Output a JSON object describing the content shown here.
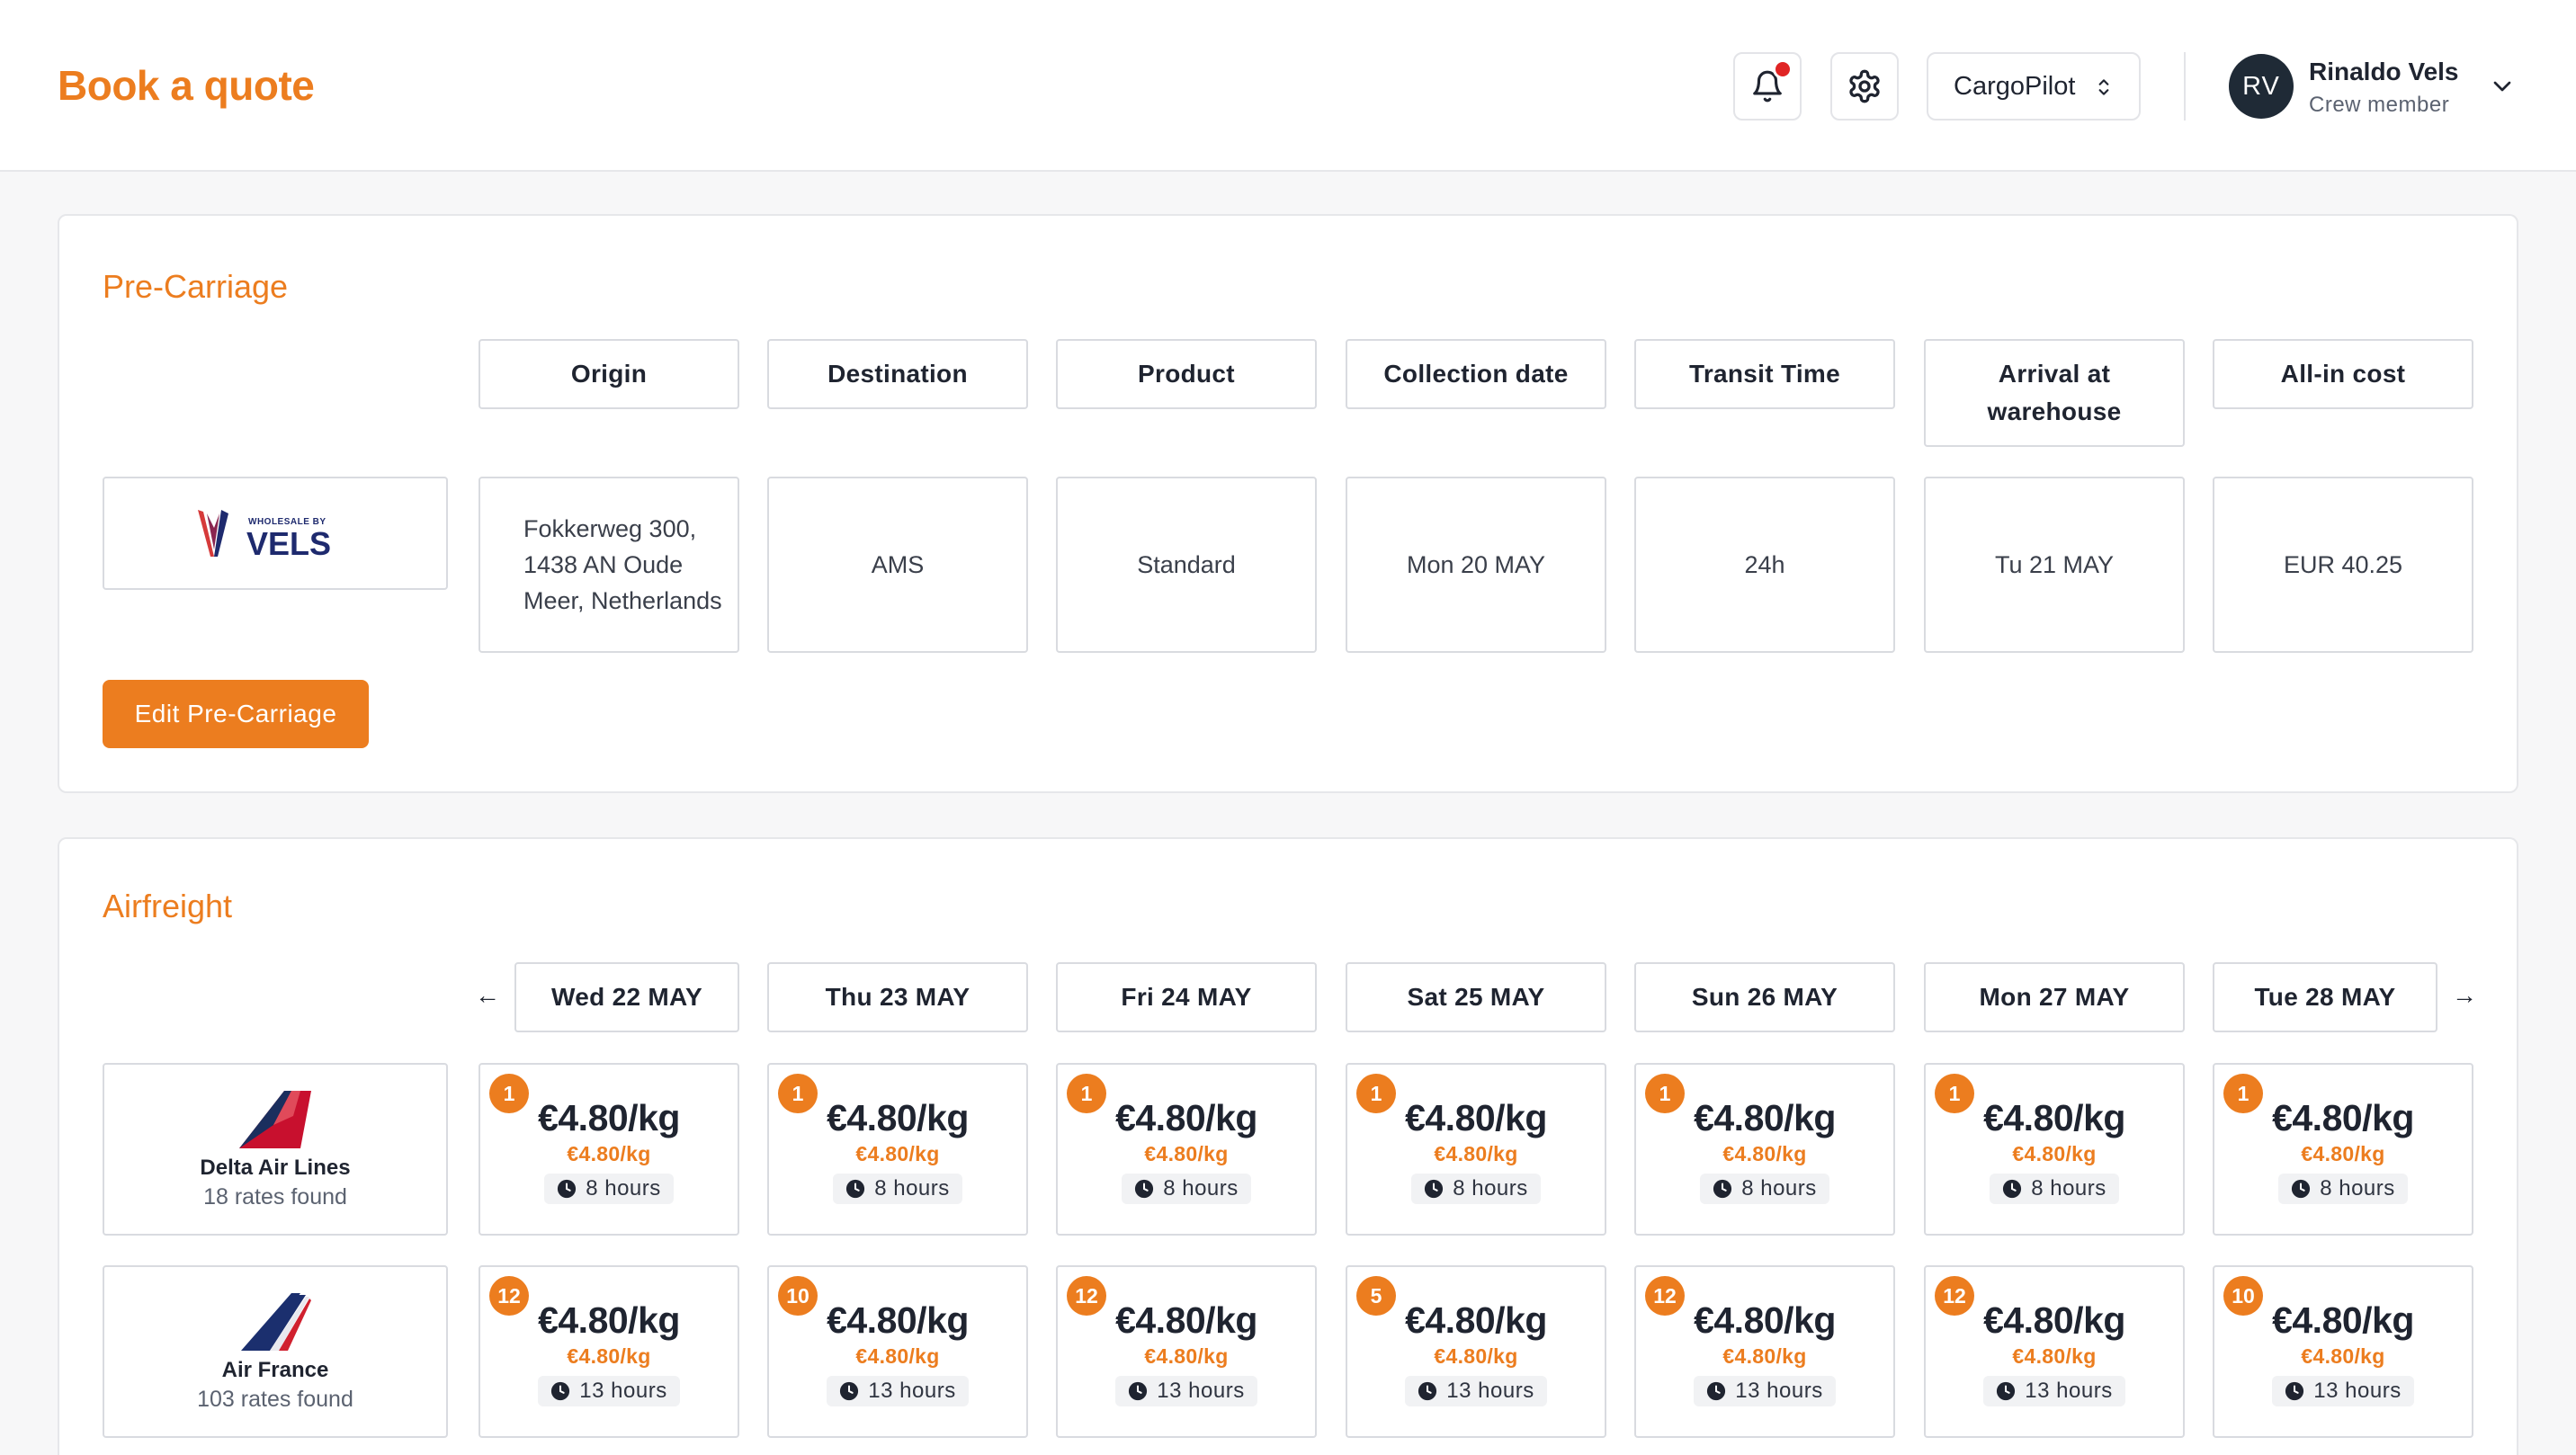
{
  "header": {
    "title": "Book a quote",
    "org_select": "CargoPilot",
    "user": {
      "initials": "RV",
      "name": "Rinaldo Vels",
      "role": "Crew member"
    },
    "notification_dot_color": "#e02424"
  },
  "colors": {
    "accent": "#ec7d1f",
    "dark": "#1f2a36"
  },
  "precarriage": {
    "title": "Pre-Carriage",
    "logo_text": "WHOLESALE BY VELS",
    "headers": [
      "Origin",
      "Destination",
      "Product",
      "Collection date",
      "Transit Time",
      "Arrival at warehouse",
      "All-in cost"
    ],
    "row": {
      "origin": "Fokkerweg 300, 1438 AN Oude Meer, Netherlands",
      "destination": "AMS",
      "product": "Standard",
      "collection_date": "Mon 20 MAY",
      "transit_time": "24h",
      "arrival": "Tu 21 MAY",
      "cost": "EUR 40.25"
    },
    "edit_button": "Edit Pre-Carriage"
  },
  "airfreight": {
    "title": "Airfreight",
    "dates": [
      "Wed 22 MAY",
      "Thu 23 MAY",
      "Fri 24 MAY",
      "Sat 25 MAY",
      "Sun 26 MAY",
      "Mon 27 MAY",
      "Tue 28 MAY"
    ],
    "carriers": [
      {
        "name": "Delta Air Lines",
        "rates_found": "18 rates found",
        "icon": "delta-tail-logo",
        "cells": [
          {
            "badge": "1",
            "price": "€4.80/kg",
            "sub": "€4.80/kg",
            "time": "8 hours"
          },
          {
            "badge": "1",
            "price": "€4.80/kg",
            "sub": "€4.80/kg",
            "time": "8 hours"
          },
          {
            "badge": "1",
            "price": "€4.80/kg",
            "sub": "€4.80/kg",
            "time": "8 hours"
          },
          {
            "badge": "1",
            "price": "€4.80/kg",
            "sub": "€4.80/kg",
            "time": "8 hours"
          },
          {
            "badge": "1",
            "price": "€4.80/kg",
            "sub": "€4.80/kg",
            "time": "8 hours"
          },
          {
            "badge": "1",
            "price": "€4.80/kg",
            "sub": "€4.80/kg",
            "time": "8 hours"
          },
          {
            "badge": "1",
            "price": "€4.80/kg",
            "sub": "€4.80/kg",
            "time": "8 hours"
          }
        ]
      },
      {
        "name": "Air France",
        "rates_found": "103 rates found",
        "icon": "air-france-tail-logo",
        "cells": [
          {
            "badge": "12",
            "price": "€4.80/kg",
            "sub": "€4.80/kg",
            "time": "13 hours"
          },
          {
            "badge": "10",
            "price": "€4.80/kg",
            "sub": "€4.80/kg",
            "time": "13 hours"
          },
          {
            "badge": "12",
            "price": "€4.80/kg",
            "sub": "€4.80/kg",
            "time": "13 hours"
          },
          {
            "badge": "5",
            "price": "€4.80/kg",
            "sub": "€4.80/kg",
            "time": "13 hours"
          },
          {
            "badge": "12",
            "price": "€4.80/kg",
            "sub": "€4.80/kg",
            "time": "13 hours"
          },
          {
            "badge": "12",
            "price": "€4.80/kg",
            "sub": "€4.80/kg",
            "time": "13 hours"
          },
          {
            "badge": "10",
            "price": "€4.80/kg",
            "sub": "€4.80/kg",
            "time": "13 hours"
          }
        ]
      }
    ]
  }
}
